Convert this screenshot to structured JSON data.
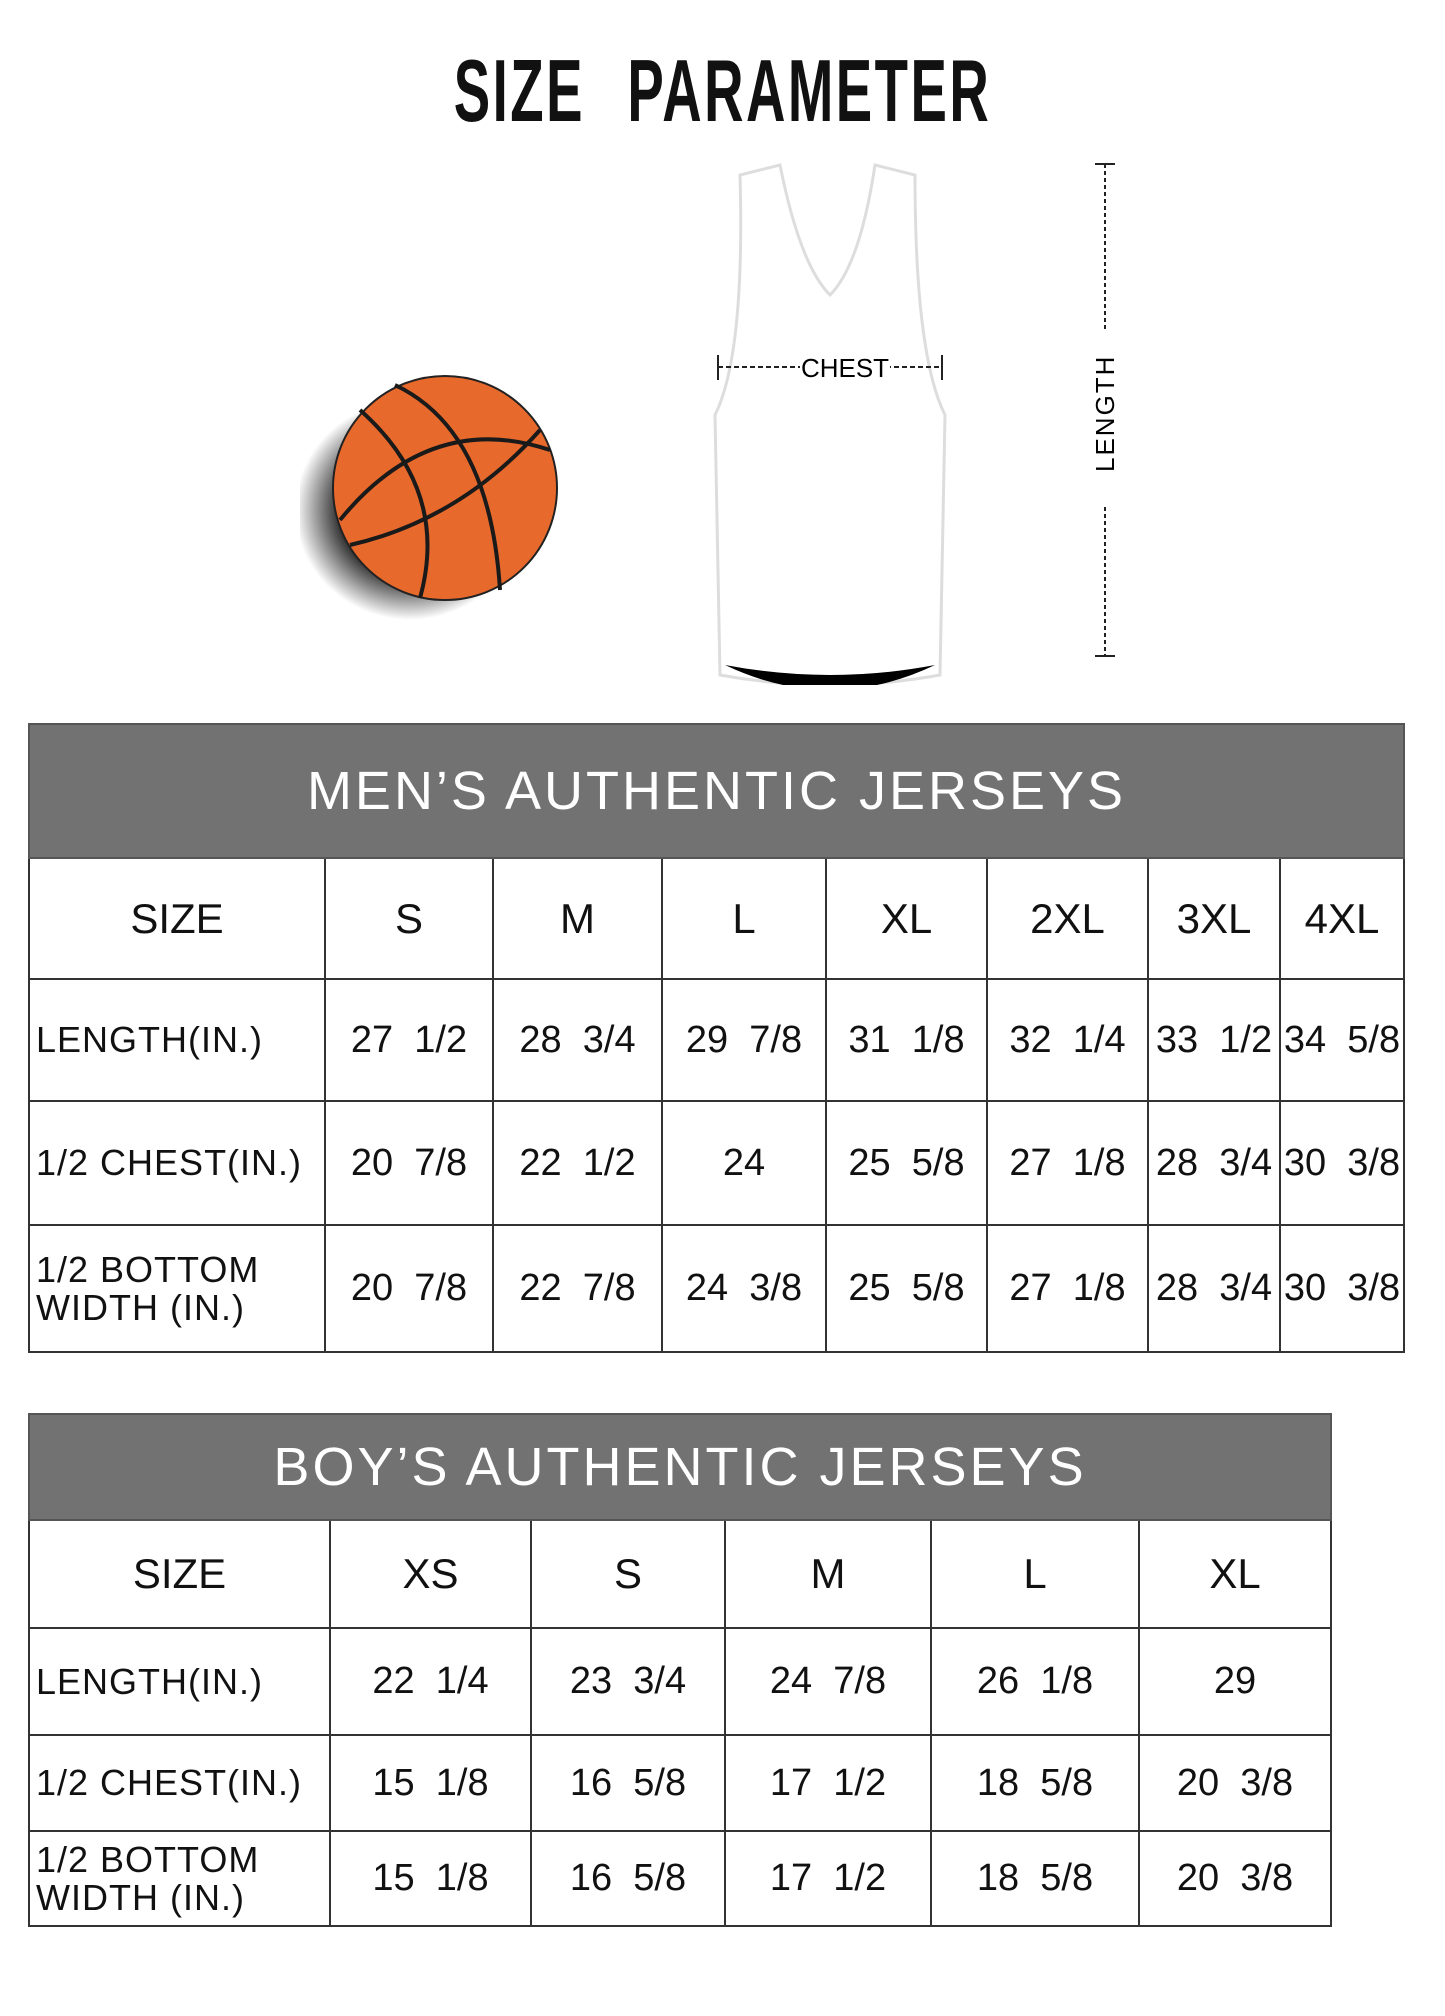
{
  "title": "SIZE PARAMETER",
  "diagram": {
    "chest_label": "CHEST",
    "length_label": "LENGTH"
  },
  "colors": {
    "header_bg": "#727272",
    "ball": "#e8692c"
  },
  "men": {
    "heading": "MEN’S AUTHENTIC JERSEYS",
    "size_label": "SIZE",
    "sizes": [
      "S",
      "M",
      "L",
      "XL",
      "2XL",
      "3XL",
      "4XL"
    ],
    "rows": [
      {
        "label": "LENGTH(IN.)",
        "values": [
          "27  1/2",
          "28  3/4",
          "29  7/8",
          "31  1/8",
          "32  1/4",
          "33  1/2",
          "34  5/8"
        ]
      },
      {
        "label": "1/2 CHEST(IN.)",
        "values": [
          "20  7/8",
          "22  1/2",
          "24",
          "25  5/8",
          "27  1/8",
          "28  3/4",
          "30  3/8"
        ]
      },
      {
        "label": "1/2 BOTTOM\nWIDTH  (IN.)",
        "values": [
          "20  7/8",
          "22  7/8",
          "24  3/8",
          "25  5/8",
          "27  1/8",
          "28  3/4",
          "30  3/8"
        ]
      }
    ]
  },
  "boys": {
    "heading": "BOY’S AUTHENTIC JERSEYS",
    "size_label": "SIZE",
    "sizes": [
      "XS",
      "S",
      "M",
      "L",
      "XL"
    ],
    "rows": [
      {
        "label": "LENGTH(IN.)",
        "values": [
          "22  1/4",
          "23  3/4",
          "24  7/8",
          "26  1/8",
          "29"
        ]
      },
      {
        "label": "1/2 CHEST(IN.)",
        "values": [
          "15  1/8",
          "16  5/8",
          "17  1/2",
          "18  5/8",
          "20  3/8"
        ]
      },
      {
        "label": "1/2 BOTTOM\nWIDTH  (IN.)",
        "values": [
          "15  1/8",
          "16  5/8",
          "17  1/2",
          "18  5/8",
          "20  3/8"
        ]
      }
    ]
  }
}
